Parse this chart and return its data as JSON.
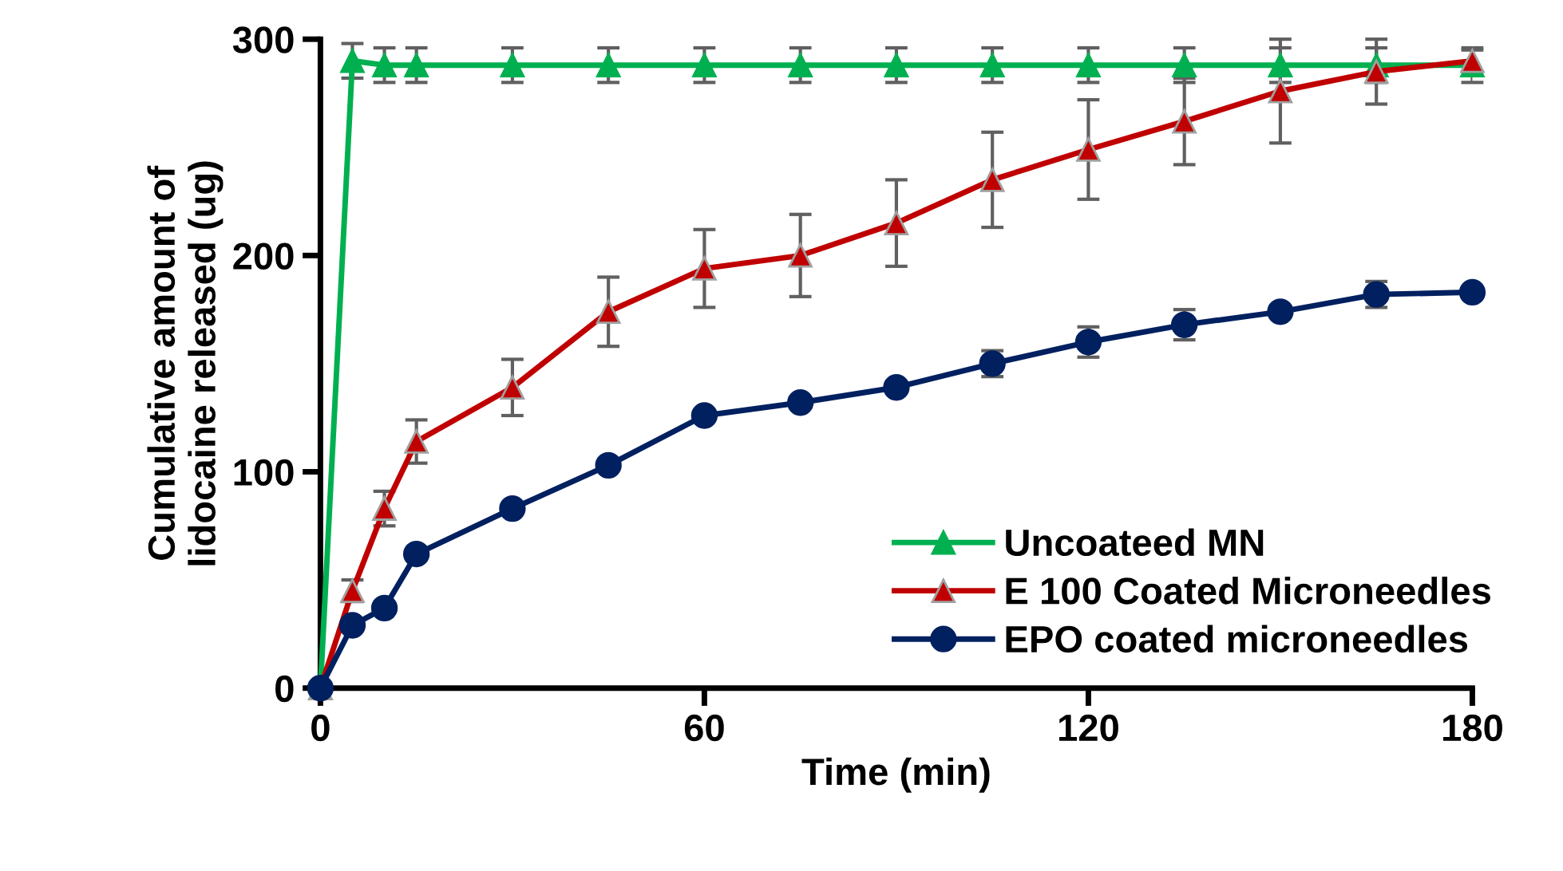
{
  "chart_data": {
    "type": "line",
    "xlabel": "Time (min)",
    "ylabel": "Cumulative amount of\nlidocaine released (ug)",
    "x": [
      0,
      5,
      10,
      15,
      30,
      45,
      60,
      75,
      90,
      105,
      120,
      135,
      150,
      165,
      180
    ],
    "series": [
      {
        "name": "Uncoateed MN",
        "color": "#00b050",
        "marker": "triangle",
        "values": [
          0,
          290,
          288,
          288,
          288,
          288,
          288,
          288,
          288,
          288,
          288,
          288,
          288,
          288,
          288
        ],
        "errors": [
          null,
          8,
          8,
          8,
          8,
          8,
          8,
          8,
          8,
          8,
          8,
          8,
          8,
          8,
          8
        ]
      },
      {
        "name": "E 100 Coated Microneedles",
        "color": "#c00000",
        "marker": "triangle",
        "values": [
          0,
          45,
          83,
          114,
          139,
          174,
          194,
          200,
          215,
          235,
          249,
          262,
          276,
          285,
          290
        ],
        "errors": [
          null,
          5,
          8,
          10,
          13,
          16,
          18,
          19,
          20,
          22,
          23,
          20,
          24,
          15,
          5
        ]
      },
      {
        "name": "EPO coated microneedles",
        "color": "#002060",
        "marker": "circle",
        "values": [
          0,
          29,
          37,
          62,
          83,
          103,
          126,
          132,
          139,
          150,
          160,
          168,
          174,
          182,
          183
        ],
        "errors": [
          null,
          null,
          null,
          null,
          null,
          null,
          null,
          null,
          null,
          6,
          7,
          7,
          null,
          6,
          null
        ]
      }
    ],
    "xlim": [
      0,
      180
    ],
    "ylim": [
      0,
      300
    ],
    "xticks": [
      0,
      60,
      120,
      180
    ],
    "yticks": [
      0,
      100,
      200,
      300
    ],
    "legend": "right",
    "grid": false
  }
}
